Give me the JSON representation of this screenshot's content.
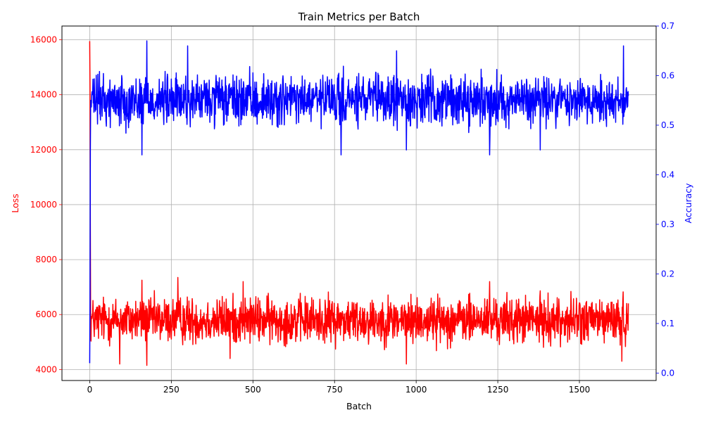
{
  "chart_data": {
    "type": "line",
    "title": "Train Metrics per Batch",
    "xlabel": "Batch",
    "ylabel_left": "Loss",
    "ylabel_right": "Accuracy",
    "xlim": [
      -85,
      1735
    ],
    "ylim_left": [
      3600,
      16500
    ],
    "ylim_right": [
      -0.015,
      0.7
    ],
    "x_ticks": [
      0,
      250,
      500,
      750,
      1000,
      1250,
      1500
    ],
    "y_ticks_left": [
      4000,
      6000,
      8000,
      10000,
      12000,
      14000,
      16000
    ],
    "y_ticks_right": [
      0.0,
      0.1,
      0.2,
      0.3,
      0.4,
      0.5,
      0.6,
      0.7
    ],
    "grid": true,
    "colors": {
      "loss": "#ff0000",
      "accuracy": "#0000ff",
      "grid": "#b0b0b0",
      "axis": "#000000"
    },
    "series": [
      {
        "name": "",
        "axis": "left",
        "color": "#ff0000",
        "start": {
          "x": [
            0,
            1,
            2,
            3
          ],
          "y": [
            15950,
            14200,
            9000,
            5200
          ]
        },
        "n_batches": 1650,
        "typical_range": [
          4800,
          6800
        ],
        "extremes": [
          {
            "x": 92,
            "y": 4200
          },
          {
            "x": 175,
            "y": 4150
          },
          {
            "x": 270,
            "y": 7350
          },
          {
            "x": 160,
            "y": 7250
          },
          {
            "x": 470,
            "y": 7200
          },
          {
            "x": 1225,
            "y": 7200
          },
          {
            "x": 970,
            "y": 4200
          },
          {
            "x": 1630,
            "y": 4300
          },
          {
            "x": 430,
            "y": 4400
          }
        ]
      },
      {
        "name": "",
        "axis": "right",
        "color": "#0000ff",
        "start": {
          "x": [
            0,
            1,
            2,
            3
          ],
          "y": [
            0.02,
            0.15,
            0.45,
            0.55
          ]
        },
        "n_batches": 1650,
        "typical_range": [
          0.49,
          0.61
        ],
        "extremes": [
          {
            "x": 175,
            "y": 0.67
          },
          {
            "x": 300,
            "y": 0.66
          },
          {
            "x": 940,
            "y": 0.65
          },
          {
            "x": 1635,
            "y": 0.66
          },
          {
            "x": 160,
            "y": 0.44
          },
          {
            "x": 770,
            "y": 0.44
          },
          {
            "x": 1225,
            "y": 0.44
          },
          {
            "x": 970,
            "y": 0.45
          },
          {
            "x": 1380,
            "y": 0.45
          }
        ]
      }
    ]
  }
}
